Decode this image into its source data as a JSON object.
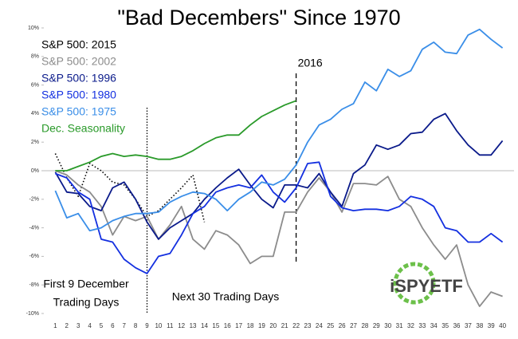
{
  "chart_data": {
    "type": "line",
    "title": "\"Bad Decembers\" Since 1970",
    "x": [
      1,
      2,
      3,
      4,
      5,
      6,
      7,
      8,
      9,
      10,
      11,
      12,
      13,
      14,
      15,
      16,
      17,
      18,
      19,
      20,
      21,
      22,
      23,
      24,
      25,
      26,
      27,
      28,
      29,
      30,
      31,
      32,
      33,
      34,
      35,
      36,
      37,
      38,
      39,
      40
    ],
    "xlim": [
      0,
      41
    ],
    "xticks": [
      1,
      2,
      3,
      4,
      5,
      6,
      7,
      8,
      9,
      10,
      11,
      12,
      13,
      14,
      15,
      16,
      17,
      18,
      19,
      20,
      21,
      22,
      23,
      24,
      25,
      26,
      27,
      28,
      29,
      30,
      31,
      32,
      33,
      34,
      35,
      36,
      37,
      38,
      39,
      40
    ],
    "ylim": [
      -10,
      10
    ],
    "yticks": [
      {
        "value": -10,
        "label": "-10%"
      },
      {
        "value": -8,
        "label": "-8%"
      },
      {
        "value": -6,
        "label": "-6%"
      },
      {
        "value": -4,
        "label": "-4%"
      },
      {
        "value": -2,
        "label": "-2%"
      },
      {
        "value": 0,
        "label": "0%"
      },
      {
        "value": 2,
        "label": "2%"
      },
      {
        "value": 4,
        "label": "4%"
      },
      {
        "value": 6,
        "label": "6%"
      },
      {
        "value": 8,
        "label": "8%"
      },
      {
        "value": 10,
        "label": "10%"
      }
    ],
    "series": [
      {
        "name": "S&P 500: 2015",
        "color": "#000000",
        "dash": "dotted",
        "values": [
          1.2,
          -0.5,
          -1.8,
          0.5,
          0,
          -0.8,
          -1,
          -2,
          -3.2,
          -2.8,
          -2,
          -1.2,
          -0.3,
          -3.6,
          null,
          null,
          null,
          null,
          null,
          null,
          null,
          null,
          null,
          null,
          null,
          null,
          null,
          null,
          null,
          null,
          null,
          null,
          null,
          null,
          null,
          null,
          null,
          null,
          null,
          null
        ]
      },
      {
        "name": "S&P 500: 2002",
        "color": "#8c8c8c",
        "values": [
          0,
          -0.3,
          -1,
          -1.5,
          -2.5,
          -4.5,
          -3.2,
          -3.5,
          -3.2,
          -4.8,
          -3.8,
          -2.5,
          -4.8,
          -5.5,
          -4.2,
          -4.5,
          -5.2,
          -6.5,
          -6,
          -6,
          -2.9,
          -2.9,
          -1.5,
          -0.5,
          -1.5,
          -2.9,
          -0.9,
          -0.9,
          -1,
          -0.4,
          -2,
          -2.5,
          -4,
          -5.2,
          -6.2,
          -5.2,
          -8,
          -9.5,
          -8.5,
          -8.8
        ]
      },
      {
        "name": "S&P 500: 1996",
        "color": "#0a1a8a",
        "values": [
          -0.1,
          -1.5,
          -1.6,
          -2.5,
          -2.8,
          -1.2,
          -0.8,
          -2,
          -3.6,
          -4.8,
          -4,
          -3.5,
          -3,
          -2,
          -1.2,
          -0.5,
          0.1,
          -1,
          -2,
          -2.6,
          -1,
          -1,
          -1.2,
          -0.2,
          -1.5,
          -2.5,
          -0.2,
          0.4,
          1.8,
          1.5,
          1.8,
          2.6,
          2.7,
          3.6,
          4,
          2.8,
          1.8,
          1.1,
          1.1,
          2.1
        ]
      },
      {
        "name": "S&P 500: 1980",
        "color": "#1430e0",
        "values": [
          -0.2,
          -0.5,
          -1.5,
          -2,
          -4.8,
          -5,
          -6.2,
          -6.8,
          -7.2,
          -6,
          -5.8,
          -4.5,
          -3,
          -2.5,
          -1.5,
          -1.2,
          -1,
          -1.2,
          -0.3,
          -1.5,
          -2.2,
          -1.2,
          0.5,
          0.6,
          -1.8,
          -2.6,
          -2.8,
          -2.7,
          -2.7,
          -2.8,
          -2.5,
          -1.8,
          -2,
          -2.5,
          -4,
          -4.2,
          -5,
          -5,
          -4.4,
          -5
        ]
      },
      {
        "name": "S&P 500: 1975",
        "color": "#3a8ee8",
        "values": [
          -1.4,
          -3.3,
          -3,
          -4.2,
          -4,
          -3.5,
          -3.2,
          -3,
          -3,
          -2.9,
          -2.2,
          -1.8,
          -1.5,
          -1.6,
          -2,
          -2.8,
          -2,
          -1.5,
          -0.8,
          -1,
          -0.6,
          0.4,
          2,
          3.2,
          3.6,
          4.3,
          4.7,
          6.2,
          5.6,
          7.1,
          6.6,
          7,
          8.5,
          9,
          8.3,
          8.2,
          9.5,
          9.9,
          9.2,
          8.6
        ]
      },
      {
        "name": "Dec. Seasonality",
        "color": "#2a9a2a",
        "values": [
          0,
          0,
          0.3,
          0.6,
          1,
          1.2,
          1,
          1.1,
          1,
          0.8,
          0.8,
          1,
          1.4,
          1.9,
          2.3,
          2.5,
          2.5,
          3.2,
          3.8,
          4.2,
          4.6,
          4.9,
          null,
          null,
          null,
          null,
          null,
          null,
          null,
          null,
          null,
          null,
          null,
          null,
          null,
          null,
          null,
          null,
          null,
          null
        ]
      }
    ],
    "vlines": [
      {
        "x": 9,
        "style": "dotted"
      },
      {
        "x": 22,
        "style": "dashed",
        "label": "2016"
      }
    ],
    "annotations": [
      "First 9 December",
      "Trading Days",
      "Next 30 Trading Days"
    ],
    "logo": "iSPYETF"
  }
}
